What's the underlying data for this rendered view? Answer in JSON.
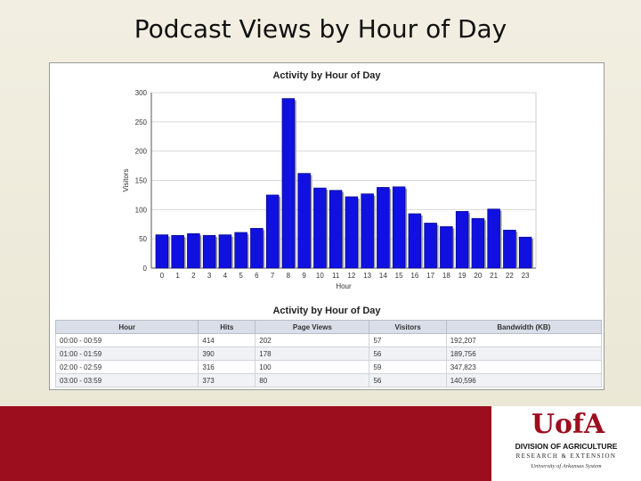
{
  "slide": {
    "title": "Podcast Views by Hour of Day"
  },
  "chart_data": {
    "type": "bar",
    "title": "Activity by Hour of Day",
    "xlabel": "Hour",
    "ylabel": "Visitors",
    "categories": [
      "0",
      "1",
      "2",
      "3",
      "4",
      "5",
      "6",
      "7",
      "8",
      "9",
      "10",
      "11",
      "12",
      "13",
      "14",
      "15",
      "16",
      "17",
      "18",
      "19",
      "20",
      "21",
      "22",
      "23"
    ],
    "values": [
      57,
      56,
      59,
      56,
      57,
      61,
      68,
      125,
      290,
      162,
      137,
      133,
      122,
      127,
      138,
      139,
      93,
      77,
      71,
      97,
      85,
      101,
      65,
      53
    ],
    "ylim": [
      0,
      300
    ],
    "yticks": [
      0,
      50,
      100,
      150,
      200,
      250,
      300
    ],
    "grid": true,
    "bar_color": "#1010e0"
  },
  "table": {
    "title": "Activity by Hour of Day",
    "headers": [
      "Hour",
      "Hits",
      "Page Views",
      "Visitors",
      "Bandwidth (KB)"
    ],
    "rows": [
      [
        "00:00 - 00:59",
        "414",
        "202",
        "57",
        "192,207"
      ],
      [
        "01:00 - 01:59",
        "390",
        "178",
        "56",
        "189,756"
      ],
      [
        "02:00 - 02:59",
        "316",
        "100",
        "59",
        "347,823"
      ],
      [
        "03:00 - 03:59",
        "373",
        "80",
        "56",
        "140,596"
      ]
    ]
  },
  "logo": {
    "mark": "UofA",
    "division": "DIVISION OF AGRICULTURE",
    "research": "RESEARCH & EXTENSION",
    "system": "University of Arkansas System"
  },
  "colors": {
    "footer": "#9c0e1e",
    "bars": "#1010e0"
  }
}
